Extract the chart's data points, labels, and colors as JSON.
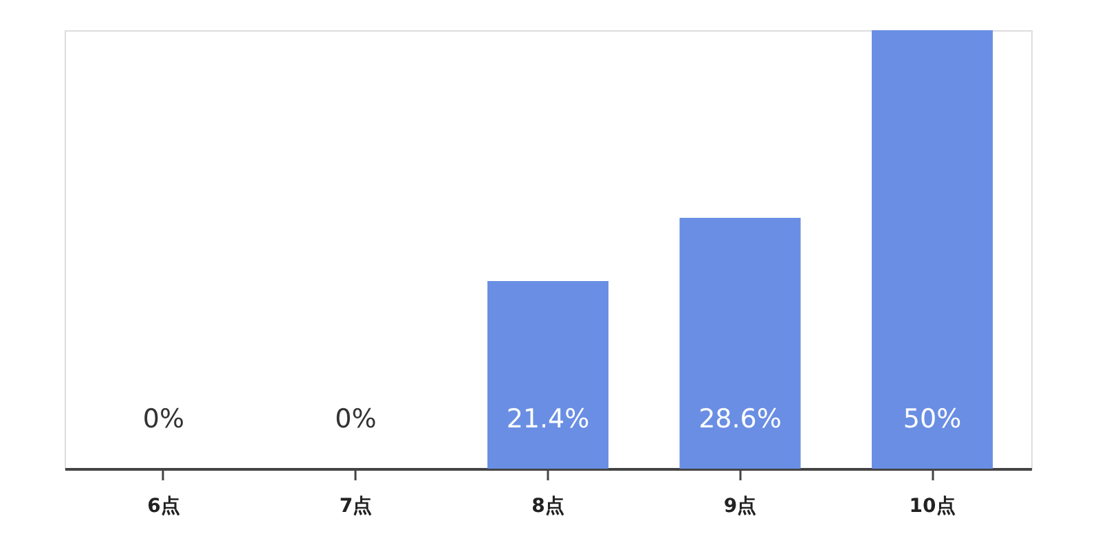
{
  "chart_data": {
    "type": "bar",
    "categories": [
      "6点",
      "7点",
      "8点",
      "9点",
      "10点"
    ],
    "values": [
      0,
      0,
      21.4,
      28.6,
      50
    ],
    "value_labels": [
      "0%",
      "0%",
      "21.4%",
      "28.6%",
      "50%"
    ],
    "color": "#6a8ee3",
    "grid": false
  }
}
